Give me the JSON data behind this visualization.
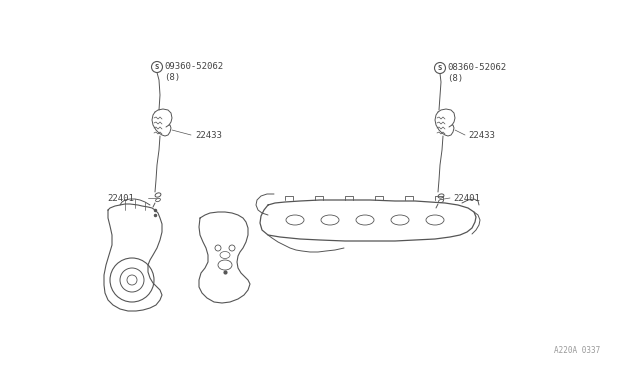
{
  "bg_color": "#ffffff",
  "line_color": "#555555",
  "text_color": "#444444",
  "fig_width": 6.4,
  "fig_height": 3.72,
  "dpi": 100,
  "watermark": "A220A 0337",
  "left_bolt_label": "09360-52062",
  "left_bolt_sub": "(8)",
  "left_coil_label": "22433",
  "left_plug_label": "22401",
  "right_bolt_label": "08360-52062",
  "right_bolt_sub": "(8)",
  "right_coil_label": "22433",
  "right_plug_label": "22401",
  "lw_main": 0.9,
  "lw_thin": 0.6,
  "lw_leader": 0.5,
  "fs_label": 7.0,
  "fs_small": 6.5,
  "fs_watermark": 5.5
}
